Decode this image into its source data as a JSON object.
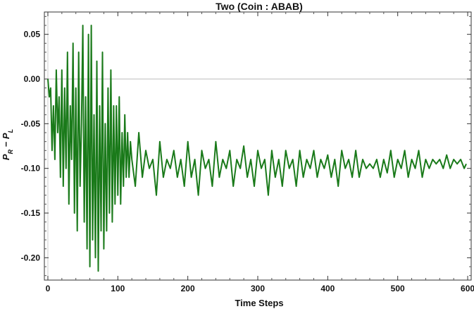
{
  "chart_data": {
    "type": "line",
    "title": "Two (Coin : ABAB)",
    "xlabel": "Time Steps",
    "ylabel": "P_R − P_L",
    "xlim": [
      -5,
      605
    ],
    "ylim": [
      -0.225,
      0.075
    ],
    "xticks": [
      0,
      100,
      200,
      300,
      400,
      500,
      600
    ],
    "yticks": [
      -0.2,
      -0.15,
      -0.1,
      -0.05,
      0.0,
      0.05
    ],
    "ytick_labels": [
      "-0.20",
      "-0.15",
      "-0.10",
      "-0.05",
      "0.00",
      "0.05"
    ],
    "grid": false,
    "reference_line_y": 0.0,
    "series": [
      {
        "color": "#1a7a1a",
        "x": [
          0,
          2,
          4,
          6,
          8,
          10,
          12,
          14,
          16,
          18,
          20,
          22,
          24,
          26,
          28,
          30,
          32,
          34,
          36,
          38,
          40,
          42,
          44,
          46,
          48,
          50,
          52,
          54,
          56,
          58,
          60,
          62,
          64,
          66,
          68,
          70,
          72,
          74,
          76,
          78,
          80,
          82,
          84,
          86,
          88,
          90,
          92,
          94,
          96,
          98,
          100,
          102,
          104,
          106,
          108,
          110,
          112,
          114,
          116,
          118,
          120,
          125,
          130,
          135,
          140,
          145,
          150,
          155,
          160,
          165,
          170,
          175,
          180,
          185,
          190,
          195,
          200,
          205,
          210,
          215,
          220,
          225,
          230,
          235,
          240,
          245,
          250,
          255,
          260,
          265,
          270,
          275,
          280,
          285,
          290,
          295,
          300,
          305,
          310,
          315,
          320,
          325,
          330,
          335,
          340,
          345,
          350,
          355,
          360,
          365,
          370,
          375,
          380,
          385,
          390,
          395,
          400,
          405,
          410,
          415,
          420,
          425,
          430,
          435,
          440,
          445,
          450,
          455,
          460,
          465,
          470,
          475,
          480,
          485,
          490,
          495,
          500,
          505,
          510,
          515,
          520,
          525,
          530,
          535,
          540,
          545,
          550,
          555,
          560,
          565,
          570,
          575,
          580,
          585,
          590,
          595,
          598
        ],
        "y": [
          0.0,
          -0.02,
          -0.01,
          -0.08,
          -0.03,
          -0.09,
          0.01,
          -0.06,
          -0.02,
          -0.11,
          0.01,
          -0.12,
          -0.01,
          -0.1,
          0.03,
          -0.14,
          -0.03,
          -0.09,
          0.04,
          -0.15,
          -0.01,
          -0.17,
          0.03,
          -0.12,
          -0.05,
          0.06,
          -0.16,
          -0.02,
          -0.19,
          0.05,
          -0.21,
          0.06,
          -0.18,
          -0.04,
          -0.2,
          0.02,
          -0.215,
          -0.03,
          -0.17,
          0.03,
          -0.19,
          -0.05,
          -0.17,
          -0.01,
          -0.15,
          0.01,
          -0.16,
          -0.03,
          -0.14,
          -0.03,
          -0.13,
          -0.02,
          -0.14,
          -0.06,
          -0.12,
          -0.04,
          -0.11,
          -0.06,
          -0.11,
          -0.07,
          -0.09,
          -0.12,
          -0.06,
          -0.11,
          -0.08,
          -0.1,
          -0.09,
          -0.13,
          -0.07,
          -0.11,
          -0.09,
          -0.1,
          -0.08,
          -0.11,
          -0.09,
          -0.12,
          -0.07,
          -0.11,
          -0.09,
          -0.13,
          -0.08,
          -0.1,
          -0.09,
          -0.12,
          -0.07,
          -0.11,
          -0.09,
          -0.1,
          -0.08,
          -0.12,
          -0.09,
          -0.1,
          -0.075,
          -0.11,
          -0.09,
          -0.12,
          -0.08,
          -0.1,
          -0.09,
          -0.13,
          -0.08,
          -0.11,
          -0.09,
          -0.12,
          -0.08,
          -0.1,
          -0.09,
          -0.12,
          -0.08,
          -0.11,
          -0.09,
          -0.1,
          -0.08,
          -0.11,
          -0.09,
          -0.1,
          -0.085,
          -0.11,
          -0.09,
          -0.12,
          -0.08,
          -0.1,
          -0.09,
          -0.11,
          -0.08,
          -0.11,
          -0.09,
          -0.1,
          -0.095,
          -0.1,
          -0.09,
          -0.11,
          -0.09,
          -0.105,
          -0.08,
          -0.11,
          -0.09,
          -0.1,
          -0.08,
          -0.11,
          -0.09,
          -0.1,
          -0.08,
          -0.11,
          -0.09,
          -0.1,
          -0.09,
          -0.095,
          -0.09,
          -0.1,
          -0.085,
          -0.1,
          -0.09,
          -0.095,
          -0.09,
          -0.1,
          -0.095
        ]
      }
    ]
  }
}
